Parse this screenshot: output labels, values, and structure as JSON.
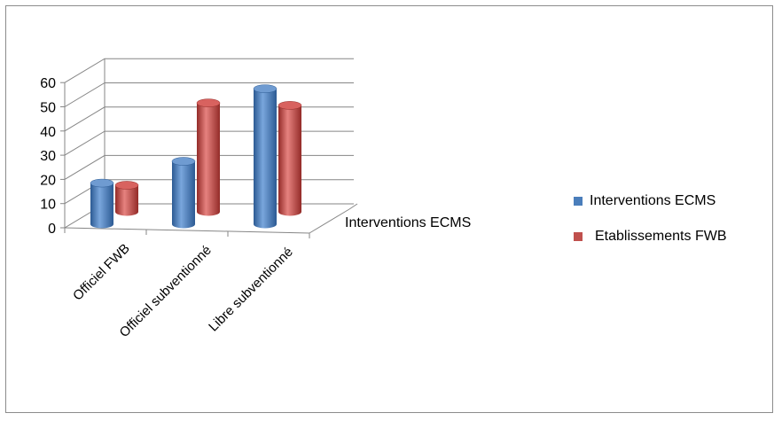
{
  "chart_data": {
    "type": "bar",
    "variant": "3d-cylinder",
    "title": "",
    "xlabel": "",
    "ylabel": "",
    "categories": [
      "Officiel FWB",
      "Officiel subventionné",
      "Libre subventionné"
    ],
    "depth_label": "Interventions ECMS",
    "yticks": [
      "0",
      "10",
      "20",
      "30",
      "40",
      "50",
      "60"
    ],
    "ylim": [
      0,
      60
    ],
    "grid": true,
    "legend_position": "right",
    "series": [
      {
        "name": "Interventions ECMS",
        "color": "#4a7ebb",
        "values": [
          17,
          26,
          56
        ]
      },
      {
        "name": "Etablissements FWB",
        "color": "#c0504d",
        "values": [
          11,
          45,
          44
        ]
      }
    ]
  }
}
